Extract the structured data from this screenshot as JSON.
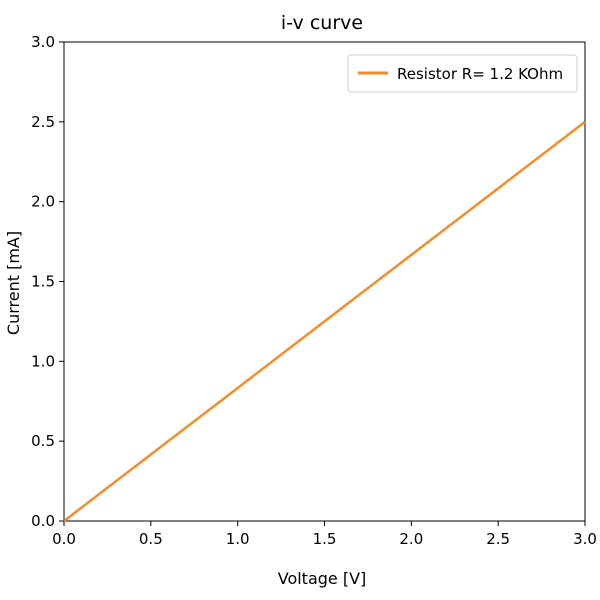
{
  "chart_data": {
    "type": "line",
    "title": "i-v curve",
    "xlabel": "Voltage [V]",
    "ylabel": "Current [mA]",
    "xlim": [
      0.0,
      3.0
    ],
    "ylim": [
      0.0,
      3.0
    ],
    "xticks": [
      "0.0",
      "0.5",
      "1.0",
      "1.5",
      "2.0",
      "2.5",
      "3.0"
    ],
    "yticks": [
      "0.0",
      "0.5",
      "1.0",
      "1.5",
      "2.0",
      "2.5",
      "3.0"
    ],
    "grid": false,
    "legend_position": "top-right",
    "series": [
      {
        "name": "Resistor R= 1.2 KOhm",
        "color": "#f28e2b",
        "x": [
          0.0,
          0.5,
          1.0,
          1.5,
          2.0,
          2.5,
          3.0
        ],
        "y": [
          0.0,
          0.4167,
          0.8333,
          1.25,
          1.6667,
          2.0833,
          2.5
        ]
      }
    ]
  }
}
